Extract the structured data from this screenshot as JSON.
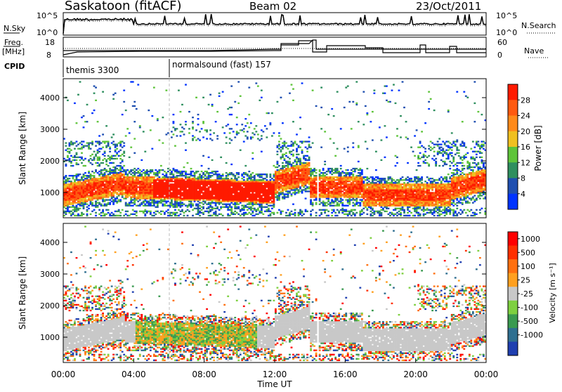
{
  "header": {
    "station": "Saskatoon (fitACF)",
    "beam": "Beam 02",
    "date": "23/Oct/2011"
  },
  "top_panels": {
    "noise": {
      "left_label": "N.Sky",
      "right_label": "N.Search",
      "y_ticks": [
        "10^5",
        "10^0"
      ],
      "y_ticks_right": [
        "10^5",
        "10^0"
      ]
    },
    "freq": {
      "left_label_1": "Freq.",
      "left_label_2": "[MHz]",
      "right_label": "Nave",
      "y_ticks_left": [
        "18",
        "8"
      ],
      "y_ticks_right": [
        "60",
        "0"
      ]
    },
    "cpid": {
      "label": "CPID",
      "segments": [
        {
          "label": "themis 3300",
          "start_h": 0
        },
        {
          "label": "normalsound (fast) 157",
          "start_h": 6
        }
      ]
    }
  },
  "chart_data": [
    {
      "type": "heatmap",
      "title": "",
      "ylabel": "Slant Range [km]",
      "xlabel": "",
      "xlim": [
        0,
        24
      ],
      "ylim": [
        200,
        4600
      ],
      "y_ticks": [
        "1000",
        "2000",
        "3000",
        "4000"
      ],
      "colorbar": {
        "label": "Power [dB]",
        "ticks": [
          "4",
          "8",
          "12",
          "16",
          "20",
          "24",
          "28"
        ],
        "colors": [
          "#0033ff",
          "#1f4fb0",
          "#2f8f5f",
          "#5ec43a",
          "#f0c020",
          "#ff8a1a",
          "#ff5a10",
          "#ff1a00"
        ]
      }
    },
    {
      "type": "heatmap",
      "title": "",
      "ylabel": "Slant Range [km]",
      "xlabel": "Time UT",
      "xlim": [
        0,
        24
      ],
      "ylim": [
        200,
        4600
      ],
      "y_ticks": [
        "1000",
        "2000",
        "3000",
        "4000"
      ],
      "x_ticks": [
        "00:00",
        "04:00",
        "08:00",
        "12:00",
        "16:00",
        "20:00",
        "00:00"
      ],
      "colorbar": {
        "label": "Velocity [m s⁻¹]",
        "ticks": [
          "1000",
          "500",
          "100",
          "25",
          "-25",
          "-100",
          "-500",
          "-1000"
        ],
        "colors": [
          "#1f3fb0",
          "#2f6f90",
          "#3a9a50",
          "#7ed040",
          "#c8c8c8",
          "#ffa020",
          "#ff7010",
          "#ff3000",
          "#ff0000"
        ]
      }
    }
  ]
}
